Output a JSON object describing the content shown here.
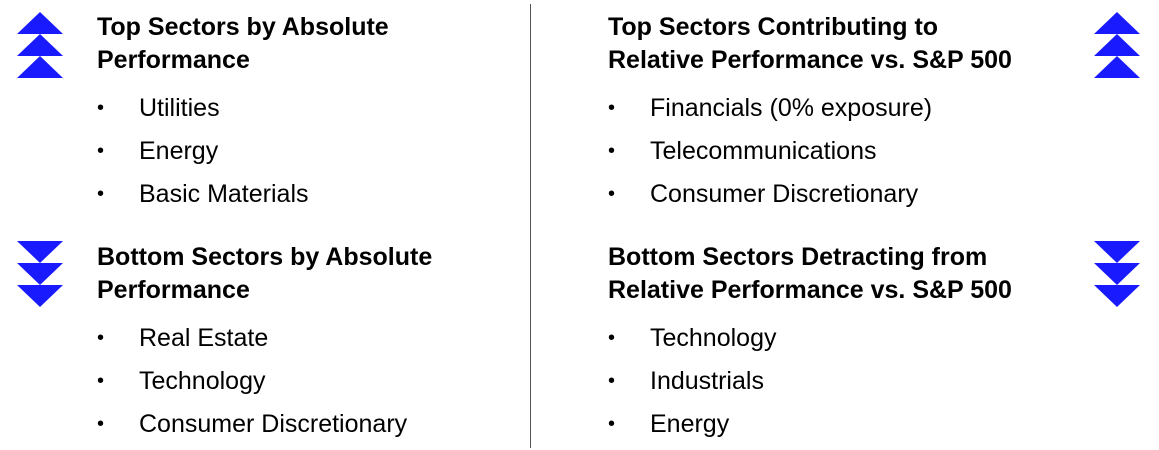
{
  "colors": {
    "arrow": "#1a1aff",
    "text": "#000000",
    "divider": "#555555"
  },
  "sections": {
    "top_absolute": {
      "heading_line1": "Top Sectors by Absolute",
      "heading_line2": "Performance",
      "icon": "triple-chevron-up-icon",
      "items": [
        "Utilities",
        "Energy",
        "Basic Materials"
      ]
    },
    "bottom_absolute": {
      "heading_line1": "Bottom Sectors by Absolute",
      "heading_line2": "Performance",
      "icon": "triple-chevron-down-icon",
      "items": [
        "Real Estate",
        "Technology",
        "Consumer Discretionary"
      ]
    },
    "top_relative": {
      "heading_line1": "Top Sectors Contributing to",
      "heading_line2": "Relative Performance vs. S&P 500",
      "icon": "triple-chevron-up-icon",
      "items": [
        "Financials (0% exposure)",
        "Telecommunications",
        "Consumer Discretionary"
      ]
    },
    "bottom_relative": {
      "heading_line1": "Bottom Sectors Detracting from",
      "heading_line2": "Relative Performance vs. S&P 500",
      "icon": "triple-chevron-down-icon",
      "items": [
        "Technology",
        "Industrials",
        "Energy"
      ]
    }
  },
  "bullet": "•"
}
